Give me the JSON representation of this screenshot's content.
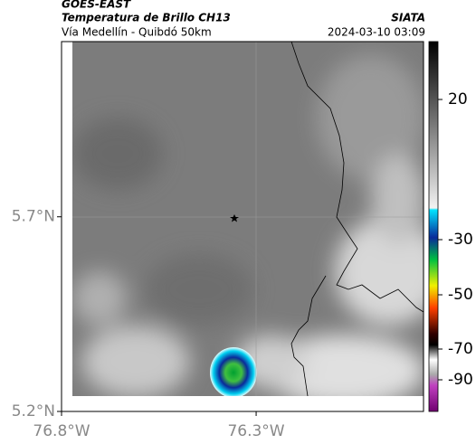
{
  "header": {
    "title": "GOES-EAST",
    "subtitle": "Temperatura de Brillo CH13",
    "region": "Vía Medellín - Quibdó 50km",
    "source": "SIATA",
    "datetime": "2024-03-10 03:09"
  },
  "map": {
    "xlim": [
      -76.8,
      -75.87
    ],
    "ylim": [
      5.2,
      6.15
    ],
    "xticks": [
      {
        "value": -76.8,
        "label": "76.8°W"
      },
      {
        "value": -76.3,
        "label": "76.3°W"
      }
    ],
    "yticks": [
      {
        "value": 5.7,
        "label": "5.7°N"
      },
      {
        "value": 5.2,
        "label": "5.2°N"
      }
    ]
  },
  "colorbar": {
    "ticks": [
      20,
      -30,
      -50,
      -70,
      -90
    ]
  }
}
